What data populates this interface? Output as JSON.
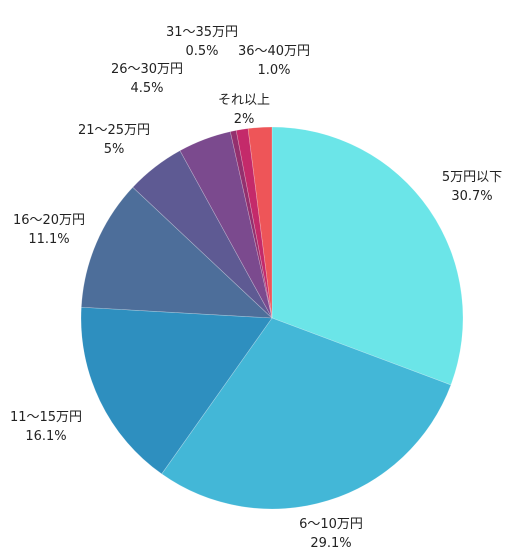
{
  "chart_data": {
    "type": "pie",
    "title": "",
    "start_angle_deg": 0,
    "direction": "clockwise",
    "slices": [
      {
        "label": "5万円以下",
        "value_text": "30.7%",
        "value": 30.7,
        "color": "#6BE5E8"
      },
      {
        "label": "6〜10万円",
        "value_text": "29.1%",
        "value": 29.1,
        "color": "#43B7D7"
      },
      {
        "label": "11〜15万円",
        "value_text": "16.1%",
        "value": 16.1,
        "color": "#2E8FBF"
      },
      {
        "label": "16〜20万円",
        "value_text": "11.1%",
        "value": 11.1,
        "color": "#4D6E9A"
      },
      {
        "label": "21〜25万円",
        "value_text": "5%",
        "value": 5.0,
        "color": "#5E5A93"
      },
      {
        "label": "26〜30万円",
        "value_text": "4.5%",
        "value": 4.5,
        "color": "#7B4A8E"
      },
      {
        "label": "31〜35万円",
        "value_text": "0.5%",
        "value": 0.5,
        "color": "#94306E"
      },
      {
        "label": "36〜40万円",
        "value_text": "1.0%",
        "value": 1.0,
        "color": "#C42A6A"
      },
      {
        "label": "それ以上",
        "value_text": "2%",
        "value": 2.0,
        "color": "#EE5558"
      }
    ]
  }
}
